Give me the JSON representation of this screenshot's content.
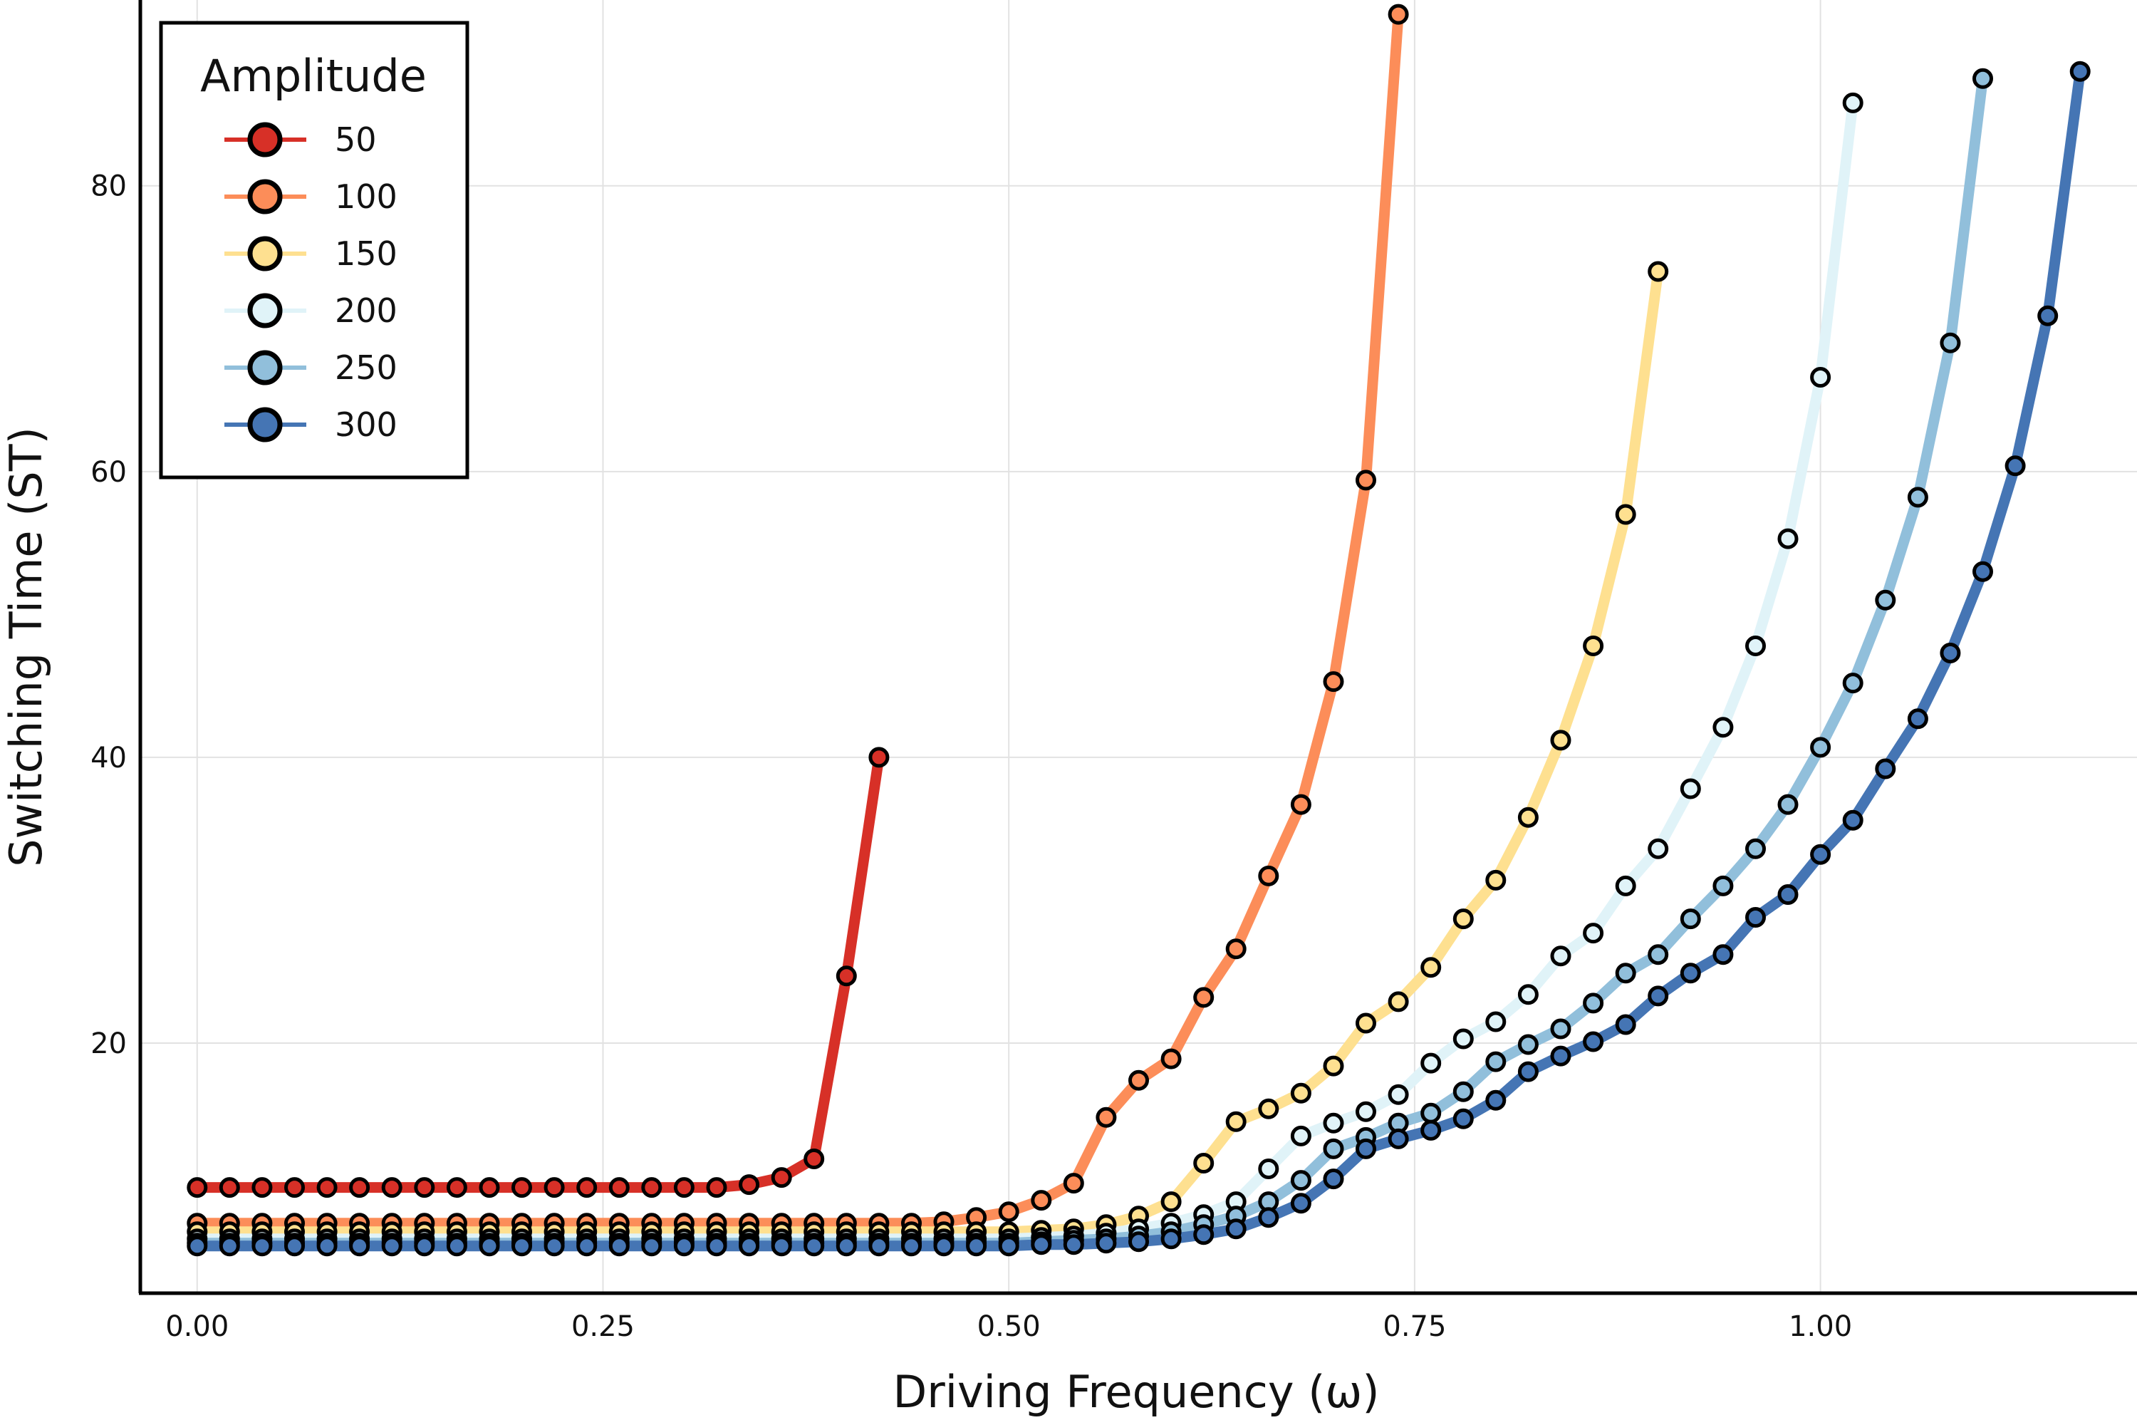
{
  "chart_data": {
    "type": "line",
    "title": "",
    "xlabel": "Driving Frequency (ω)",
    "ylabel": "Switching Time (ST)",
    "xlim": [
      -0.035,
      1.195
    ],
    "ylim": [
      2.5,
      93
    ],
    "xticks": [
      0.0,
      0.25,
      0.5,
      0.75,
      1.0
    ],
    "xtick_labels": [
      "0.00",
      "0.25",
      "0.50",
      "0.75",
      "1.00"
    ],
    "yticks": [
      20,
      40,
      60,
      80
    ],
    "ytick_labels": [
      "20",
      "40",
      "60",
      "80"
    ],
    "grid": true,
    "markers": "circle, black outline",
    "legend": {
      "title": "Amplitude",
      "placement": "top-left"
    },
    "series": [
      {
        "name": "50",
        "color": "#d73027",
        "x": [
          0.0,
          0.02,
          0.04,
          0.06,
          0.08,
          0.1,
          0.12,
          0.14,
          0.16,
          0.18,
          0.2,
          0.22,
          0.24,
          0.26,
          0.28,
          0.3,
          0.32,
          0.34,
          0.36,
          0.38,
          0.4,
          0.42
        ],
        "y": [
          9.9,
          9.9,
          9.9,
          9.9,
          9.9,
          9.9,
          9.9,
          9.9,
          9.9,
          9.9,
          9.9,
          9.9,
          9.9,
          9.9,
          9.9,
          9.9,
          9.9,
          10.1,
          10.6,
          11.9,
          24.7,
          40.0
        ]
      },
      {
        "name": "100",
        "color": "#fc8d59",
        "x": [
          0.0,
          0.02,
          0.04,
          0.06,
          0.08,
          0.1,
          0.12,
          0.14,
          0.16,
          0.18,
          0.2,
          0.22,
          0.24,
          0.26,
          0.28,
          0.3,
          0.32,
          0.34,
          0.36,
          0.38,
          0.4,
          0.42,
          0.44,
          0.46,
          0.48,
          0.5,
          0.52,
          0.54,
          0.56,
          0.58,
          0.6,
          0.62,
          0.64,
          0.66,
          0.68,
          0.7,
          0.72,
          0.74
        ],
        "y": [
          7.4,
          7.4,
          7.4,
          7.4,
          7.4,
          7.4,
          7.4,
          7.4,
          7.4,
          7.4,
          7.4,
          7.4,
          7.4,
          7.4,
          7.4,
          7.4,
          7.4,
          7.4,
          7.4,
          7.4,
          7.4,
          7.4,
          7.4,
          7.5,
          7.8,
          8.2,
          9.0,
          10.2,
          14.8,
          17.4,
          18.9,
          23.2,
          26.6,
          31.7,
          36.7,
          45.3,
          59.4,
          92.0
        ]
      },
      {
        "name": "150",
        "color": "#fee090",
        "x": [
          0.0,
          0.02,
          0.04,
          0.06,
          0.08,
          0.1,
          0.12,
          0.14,
          0.16,
          0.18,
          0.2,
          0.22,
          0.24,
          0.26,
          0.28,
          0.3,
          0.32,
          0.34,
          0.36,
          0.38,
          0.4,
          0.42,
          0.44,
          0.46,
          0.48,
          0.5,
          0.52,
          0.54,
          0.56,
          0.58,
          0.6,
          0.62,
          0.64,
          0.66,
          0.68,
          0.7,
          0.72,
          0.74,
          0.76,
          0.78,
          0.8,
          0.82,
          0.84,
          0.86,
          0.88,
          0.9
        ],
        "y": [
          6.8,
          6.8,
          6.8,
          6.8,
          6.8,
          6.8,
          6.8,
          6.8,
          6.8,
          6.8,
          6.8,
          6.8,
          6.8,
          6.8,
          6.8,
          6.8,
          6.8,
          6.8,
          6.8,
          6.8,
          6.8,
          6.8,
          6.8,
          6.8,
          6.8,
          6.8,
          6.9,
          7.0,
          7.3,
          7.9,
          8.9,
          11.6,
          14.5,
          15.4,
          16.5,
          18.4,
          21.4,
          22.9,
          25.3,
          28.7,
          31.4,
          35.8,
          41.2,
          47.8,
          57.0,
          74.0
        ]
      },
      {
        "name": "200",
        "color": "#e0f3f8",
        "x": [
          0.0,
          0.02,
          0.04,
          0.06,
          0.08,
          0.1,
          0.12,
          0.14,
          0.16,
          0.18,
          0.2,
          0.22,
          0.24,
          0.26,
          0.28,
          0.3,
          0.32,
          0.34,
          0.36,
          0.38,
          0.4,
          0.42,
          0.44,
          0.46,
          0.48,
          0.5,
          0.52,
          0.54,
          0.56,
          0.58,
          0.6,
          0.62,
          0.64,
          0.66,
          0.68,
          0.7,
          0.72,
          0.74,
          0.76,
          0.78,
          0.8,
          0.82,
          0.84,
          0.86,
          0.88,
          0.9,
          0.92,
          0.94,
          0.96,
          0.98,
          1.0,
          1.02
        ],
        "y": [
          6.3,
          6.3,
          6.3,
          6.3,
          6.3,
          6.3,
          6.3,
          6.3,
          6.3,
          6.3,
          6.3,
          6.3,
          6.3,
          6.3,
          6.3,
          6.3,
          6.3,
          6.3,
          6.3,
          6.3,
          6.3,
          6.3,
          6.3,
          6.3,
          6.3,
          6.3,
          6.4,
          6.5,
          6.7,
          7.0,
          7.4,
          8.0,
          8.9,
          11.2,
          13.5,
          14.4,
          15.2,
          16.4,
          18.6,
          20.3,
          21.5,
          23.4,
          26.1,
          27.7,
          31.0,
          33.6,
          37.8,
          42.1,
          47.8,
          55.3,
          66.6,
          85.8
        ]
      },
      {
        "name": "250",
        "color": "#91bfdb",
        "x": [
          0.0,
          0.02,
          0.04,
          0.06,
          0.08,
          0.1,
          0.12,
          0.14,
          0.16,
          0.18,
          0.2,
          0.22,
          0.24,
          0.26,
          0.28,
          0.3,
          0.32,
          0.34,
          0.36,
          0.38,
          0.4,
          0.42,
          0.44,
          0.46,
          0.48,
          0.5,
          0.52,
          0.54,
          0.56,
          0.58,
          0.6,
          0.62,
          0.64,
          0.66,
          0.68,
          0.7,
          0.72,
          0.74,
          0.76,
          0.78,
          0.8,
          0.82,
          0.84,
          0.86,
          0.88,
          0.9,
          0.92,
          0.94,
          0.96,
          0.98,
          1.0,
          1.02,
          1.04,
          1.06,
          1.08,
          1.1
        ],
        "y": [
          6.0,
          6.0,
          6.0,
          6.0,
          6.0,
          6.0,
          6.0,
          6.0,
          6.0,
          6.0,
          6.0,
          6.0,
          6.0,
          6.0,
          6.0,
          6.0,
          6.0,
          6.0,
          6.0,
          6.0,
          6.0,
          6.0,
          6.0,
          6.0,
          6.0,
          6.0,
          6.1,
          6.2,
          6.3,
          6.5,
          6.8,
          7.3,
          7.9,
          8.9,
          10.4,
          12.6,
          13.4,
          14.4,
          15.1,
          16.6,
          18.7,
          19.9,
          21.0,
          22.8,
          24.9,
          26.2,
          28.7,
          31.0,
          33.6,
          36.7,
          40.7,
          45.2,
          51.0,
          58.2,
          69.0,
          87.5
        ]
      },
      {
        "name": "300",
        "color": "#4575b4",
        "x": [
          0.0,
          0.02,
          0.04,
          0.06,
          0.08,
          0.1,
          0.12,
          0.14,
          0.16,
          0.18,
          0.2,
          0.22,
          0.24,
          0.26,
          0.28,
          0.3,
          0.32,
          0.34,
          0.36,
          0.38,
          0.4,
          0.42,
          0.44,
          0.46,
          0.48,
          0.5,
          0.52,
          0.54,
          0.56,
          0.58,
          0.6,
          0.62,
          0.64,
          0.66,
          0.68,
          0.7,
          0.72,
          0.74,
          0.76,
          0.78,
          0.8,
          0.82,
          0.84,
          0.86,
          0.88,
          0.9,
          0.92,
          0.94,
          0.96,
          0.98,
          1.0,
          1.02,
          1.04,
          1.06,
          1.08,
          1.1,
          1.12,
          1.14,
          1.16
        ],
        "y": [
          5.8,
          5.8,
          5.8,
          5.8,
          5.8,
          5.8,
          5.8,
          5.8,
          5.8,
          5.8,
          5.8,
          5.8,
          5.8,
          5.8,
          5.8,
          5.8,
          5.8,
          5.8,
          5.8,
          5.8,
          5.8,
          5.8,
          5.8,
          5.8,
          5.8,
          5.8,
          5.9,
          5.9,
          6.0,
          6.1,
          6.3,
          6.6,
          7.0,
          7.8,
          8.8,
          10.5,
          12.6,
          13.3,
          13.9,
          14.7,
          16.0,
          18.0,
          19.1,
          20.1,
          21.3,
          23.3,
          24.9,
          26.2,
          28.8,
          30.4,
          33.2,
          35.6,
          39.2,
          42.7,
          47.3,
          53.0,
          60.4,
          70.9,
          88.0
        ]
      }
    ]
  }
}
